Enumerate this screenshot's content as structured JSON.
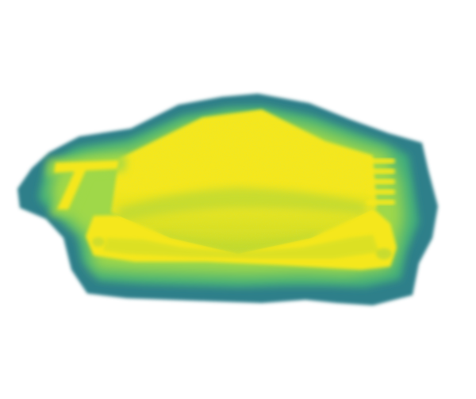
{
  "scene": {
    "description_kind": "volume-rendering",
    "colormap": "viridis",
    "colors": {
      "background": "#ffffff",
      "outer_halo": "#2f7f8a",
      "mid_halo": "#3fae7c",
      "inner_glow": "#9fd84a",
      "core": "#f5e71c",
      "core_shadow": "#c9dc2a",
      "ridge_shade": "#aad43c"
    },
    "objects": [
      {
        "name": "letter-T-glyph"
      },
      {
        "name": "base-plate"
      },
      {
        "name": "pyramid-mound"
      },
      {
        "name": "comb-pins",
        "count": 5
      }
    ]
  }
}
